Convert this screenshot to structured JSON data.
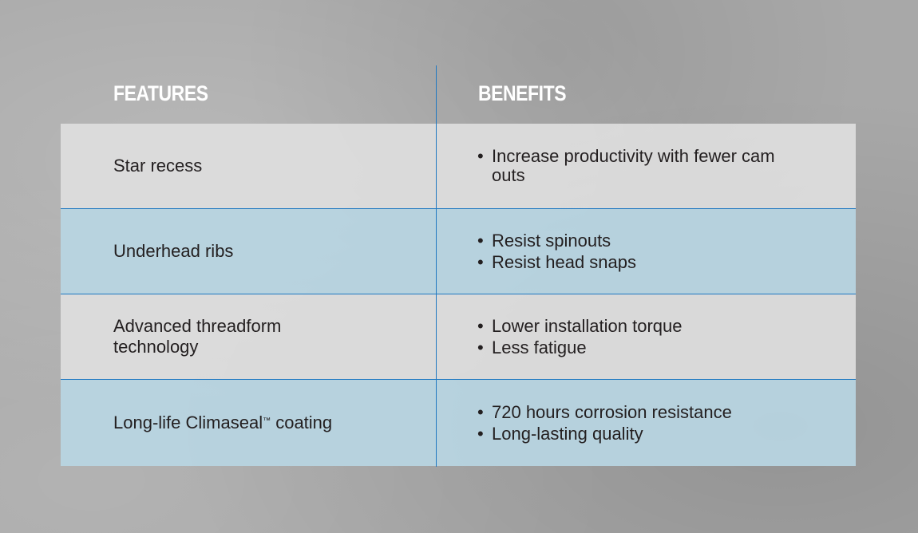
{
  "headers": {
    "features": "FEATURES",
    "benefits": "BENEFITS"
  },
  "rows": [
    {
      "feature": "Star recess",
      "benefits": [
        "Increase productivity with fewer cam outs"
      ]
    },
    {
      "feature": "Underhead ribs",
      "benefits": [
        "Resist spinouts",
        "Resist head snaps"
      ]
    },
    {
      "feature": "Advanced threadform technology",
      "benefits": [
        "Lower installation torque",
        "Less fatigue"
      ]
    },
    {
      "feature": "Long-life Climaseal",
      "feature_mark": "™",
      "feature_suffix": " coating",
      "benefits": [
        "720 hours corrosion resistance",
        "Long-lasting quality"
      ]
    }
  ],
  "colors": {
    "divider": "#1f78c1",
    "row_gray": "#dedede",
    "row_blue": "#b8d5e2",
    "header_text": "#ffffff"
  }
}
